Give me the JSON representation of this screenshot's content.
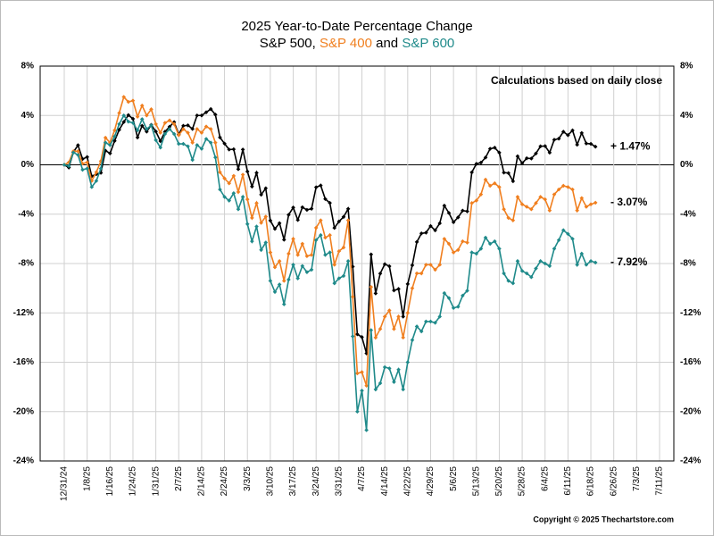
{
  "chart_data": {
    "type": "line",
    "title": "2025 Year-to-Date Percentage Change",
    "subtitle": "S&P 500, S&P 400 and S&P 600",
    "annotation": "Calculations based on daily close",
    "source": "Copyright © 2025 Thechartstore.com",
    "categories": [
      "12/31/24",
      null,
      null,
      null,
      null,
      "1/8/25",
      null,
      null,
      null,
      null,
      "1/16/25",
      null,
      null,
      null,
      null,
      "1/24/25",
      null,
      null,
      null,
      null,
      "1/31/25",
      null,
      null,
      null,
      null,
      "2/7/25",
      null,
      null,
      null,
      null,
      "2/14/25",
      null,
      null,
      null,
      null,
      "2/24/25",
      null,
      null,
      null,
      null,
      "3/3/25",
      null,
      null,
      null,
      null,
      "3/10/25",
      null,
      null,
      null,
      null,
      "3/17/25",
      null,
      null,
      null,
      null,
      "3/24/25",
      null,
      null,
      null,
      null,
      "3/31/25",
      null,
      null,
      null,
      null,
      "4/7/25",
      null,
      null,
      null,
      null,
      "4/14/25",
      null,
      null,
      null,
      null,
      "4/22/25",
      null,
      null,
      null,
      null,
      "4/29/25",
      null,
      null,
      null,
      null,
      "5/6/25",
      null,
      null,
      null,
      null,
      "5/13/25",
      null,
      null,
      null,
      null,
      "5/20/25",
      null,
      null,
      null,
      null,
      "5/28/25",
      null,
      null,
      null,
      null,
      "6/4/25",
      null,
      null,
      null,
      null,
      "6/11/25",
      null,
      null,
      null,
      null,
      "6/18/25",
      null,
      null,
      null,
      null,
      "6/26/25",
      null,
      null,
      null,
      null,
      "7/3/25",
      null,
      null,
      null,
      null,
      "7/11/25"
    ],
    "series": [
      {
        "name": "S&P 500",
        "color": "#000000",
        "end_label": "+ 1.47%",
        "values": [
          0,
          -0.22,
          1.03,
          1.59,
          0.47,
          0.63,
          -0.92,
          -0.76,
          -0.65,
          1.15,
          0.93,
          1.94,
          2.84,
          3.47,
          4.03,
          3.73,
          2.22,
          3.16,
          2.69,
          3.24,
          2.7,
          1.92,
          2.68,
          3.09,
          3.46,
          2.47,
          3.16,
          3.2,
          2.91,
          4.0,
          4.0,
          4.26,
          4.52,
          4.07,
          2.22,
          1.72,
          1.24,
          1.26,
          -0.35,
          1.24,
          -0.54,
          -1.76,
          -0.65,
          -2.42,
          -1.9,
          -4.52,
          -5.19,
          -4.73,
          -6.07,
          -4.05,
          -3.46,
          -4.47,
          -3.44,
          -3.65,
          -3.56,
          -1.82,
          -1.67,
          -2.77,
          -3.09,
          -5.11,
          -4.59,
          -4.22,
          -3.57,
          -8.25,
          -13.73,
          -13.96,
          -15.28,
          -7.26,
          -10.42,
          -8.81,
          -8.05,
          -8.22,
          -10.18,
          -10.06,
          -12.3,
          -9.66,
          -8.14,
          -6.25,
          -5.56,
          -5.5,
          -4.96,
          -5.31,
          -4.74,
          -3.31,
          -3.9,
          -4.65,
          -4.26,
          -3.71,
          -3.77,
          -0.61,
          0.08,
          0.18,
          0.59,
          1.3,
          1.39,
          0.99,
          -0.63,
          -0.67,
          -1.33,
          0.69,
          0.13,
          0.53,
          0.51,
          0.92,
          1.5,
          1.52,
          0.99,
          2.03,
          2.12,
          2.68,
          2.4,
          2.79,
          1.63,
          2.58,
          1.73,
          1.7,
          1.47,
          null,
          null,
          null,
          null,
          null,
          null,
          null,
          null,
          null,
          null,
          null,
          null,
          null,
          null
        ]
      },
      {
        "name": "S&P 400",
        "color": "#f07f1f",
        "end_label": "- 3.07%",
        "values": [
          0,
          0.2,
          1.1,
          1.1,
          0.1,
          0.2,
          -1.3,
          -0.6,
          0.3,
          2.2,
          1.8,
          2.8,
          4.2,
          5.5,
          5.1,
          5.2,
          3.9,
          4.8,
          4.0,
          4.5,
          3.3,
          2.6,
          3.4,
          3.6,
          3.3,
          2.4,
          2.9,
          2.6,
          1.8,
          2.9,
          2.6,
          3.1,
          2.9,
          1.8,
          -0.6,
          -1.1,
          -1.5,
          -0.9,
          -2.2,
          -0.8,
          -2.8,
          -4.3,
          -3.1,
          -4.7,
          -4.2,
          -7.1,
          -8.3,
          -7.8,
          -9.4,
          -7.2,
          -6.0,
          -7.3,
          -6.4,
          -7.4,
          -7.3,
          -5.1,
          -4.5,
          -5.9,
          -5.7,
          -8.1,
          -7.0,
          -6.7,
          -4.5,
          -10.7,
          -16.9,
          -16.8,
          -17.9,
          -9.9,
          -14.0,
          -13.3,
          -12.3,
          -11.8,
          -13.3,
          -12.3,
          -14.0,
          -12.0,
          -10.0,
          -8.8,
          -8.8,
          -8.1,
          -8.1,
          -8.5,
          -8.1,
          -6.0,
          -6.4,
          -7.1,
          -6.9,
          -6.2,
          -6.3,
          -3.1,
          -2.9,
          -2.4,
          -1.2,
          -1.7,
          -1.5,
          -1.8,
          -3.6,
          -4.3,
          -4.5,
          -2.6,
          -3.2,
          -3.4,
          -3.6,
          -3.1,
          -2.6,
          -2.8,
          -3.7,
          -2.4,
          -2.0,
          -1.7,
          -1.8,
          -2.0,
          -3.7,
          -2.7,
          -3.4,
          -3.2,
          -3.07,
          null,
          null,
          null,
          null,
          null,
          null,
          null,
          null,
          null,
          null,
          null,
          null,
          null,
          null
        ]
      },
      {
        "name": "S&P 600",
        "color": "#1f8a8a",
        "end_label": "- 7.92%",
        "values": [
          0,
          -0.1,
          1.0,
          0.8,
          -0.4,
          -0.3,
          -1.8,
          -1.3,
          -0.3,
          1.8,
          1.6,
          2.3,
          3.3,
          4.0,
          3.5,
          3.4,
          2.8,
          3.7,
          2.9,
          3.2,
          2.0,
          1.4,
          2.5,
          2.9,
          2.5,
          1.7,
          1.7,
          1.5,
          0.4,
          1.6,
          1.3,
          2.1,
          1.8,
          0.6,
          -2.0,
          -2.6,
          -2.9,
          -2.3,
          -3.6,
          -2.6,
          -4.8,
          -6.2,
          -5.0,
          -6.9,
          -6.3,
          -9.4,
          -10.3,
          -9.7,
          -11.3,
          -9.3,
          -8.1,
          -9.2,
          -8.2,
          -8.7,
          -8.5,
          -6.1,
          -5.7,
          -7.3,
          -7.1,
          -9.6,
          -9.2,
          -9.0,
          -7.8,
          -13.9,
          -20.0,
          -18.3,
          -21.5,
          -13.4,
          -18.2,
          -17.7,
          -16.4,
          -16.5,
          -17.6,
          -16.6,
          -18.2,
          -16.0,
          -14.2,
          -13.1,
          -13.5,
          -12.7,
          -12.7,
          -12.8,
          -12.3,
          -10.4,
          -10.8,
          -11.6,
          -11.5,
          -10.6,
          -10.2,
          -7.1,
          -7.2,
          -6.8,
          -5.9,
          -6.4,
          -6.2,
          -6.8,
          -8.8,
          -9.4,
          -9.6,
          -7.8,
          -8.6,
          -8.8,
          -9.1,
          -8.4,
          -7.8,
          -8.0,
          -8.2,
          -6.8,
          -6.1,
          -5.3,
          -5.6,
          -6.0,
          -8.1,
          -7.2,
          -8.1,
          -7.8,
          -7.92,
          null,
          null,
          null,
          null,
          null,
          null,
          null,
          null,
          null,
          null,
          null,
          null,
          null,
          null
        ]
      }
    ],
    "ylim": [
      -24,
      8
    ],
    "yticks": [
      {
        "value": 8,
        "label": "8%"
      },
      {
        "value": 4,
        "label": "4%"
      },
      {
        "value": 0,
        "label": "0%"
      },
      {
        "value": -4,
        "label": "-4%"
      },
      {
        "value": -8,
        "label": "-8%"
      },
      {
        "value": -12,
        "label": "-12%"
      },
      {
        "value": -16,
        "label": "-16%"
      },
      {
        "value": -20,
        "label": "-20%"
      },
      {
        "value": -24,
        "label": "-24%"
      }
    ],
    "grid": true
  }
}
